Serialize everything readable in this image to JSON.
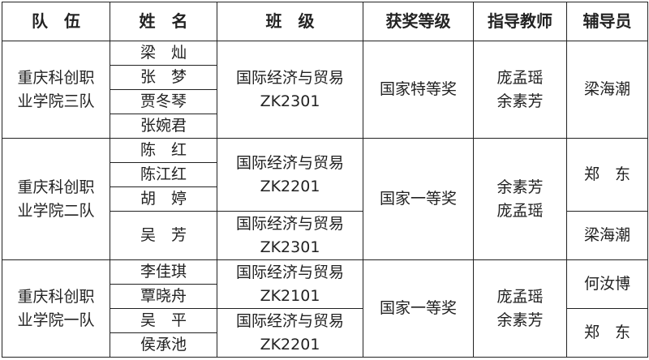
{
  "headers": {
    "team": "队　伍",
    "name": "姓　名",
    "class": "班　级",
    "award": "获奖等级",
    "teacher": "指导教师",
    "counselor": "辅导员"
  },
  "teams": [
    {
      "team": [
        "重庆科创职",
        "业学院三队"
      ],
      "names": [
        "梁　灿",
        "张　梦",
        "贾冬琴",
        "张婉君"
      ],
      "classes": [
        {
          "major": "国际经济与贸易",
          "code": "ZK2301"
        }
      ],
      "award": "国家特等奖",
      "teachers": [
        "庞孟瑶",
        "余素芳"
      ],
      "counselors": [
        "梁海潮"
      ]
    },
    {
      "team": [
        "重庆科创职",
        "业学院二队"
      ],
      "names": [
        "陈　红",
        "陈江红",
        "胡　婷",
        "吴　芳"
      ],
      "classes": [
        {
          "major": "国际经济与贸易",
          "code": "ZK2201"
        },
        {
          "major": "国际经济与贸易",
          "code": "ZK2301"
        }
      ],
      "award": "国家一等奖",
      "teachers": [
        "余素芳",
        "庞孟瑶"
      ],
      "counselors": [
        "郑　东",
        "梁海潮"
      ]
    },
    {
      "team": [
        "重庆科创职",
        "业学院一队"
      ],
      "names": [
        "李佳琪",
        "覃晓舟",
        "吴　平",
        "侯承池"
      ],
      "classes": [
        {
          "major": "国际经济与贸易",
          "code": "ZK2101"
        },
        {
          "major": "国际经济与贸易",
          "code": "ZK2201"
        }
      ],
      "award": "国家一等奖",
      "teachers": [
        "庞孟瑶",
        "余素芳"
      ],
      "counselors": [
        "何汝博",
        "郑　东"
      ]
    }
  ]
}
